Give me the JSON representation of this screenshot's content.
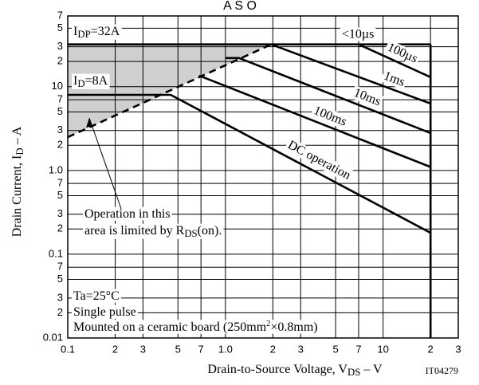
{
  "chart_data": {
    "type": "line",
    "title": "A S O",
    "xlabel": {
      "text": "Drain-to-Source Voltage, V",
      "sub": "DS",
      "after": " – V"
    },
    "ylabel": {
      "text": "Drain Current, I",
      "sub": "D",
      "after": " – A"
    },
    "code": "IT04279",
    "xscale": "log",
    "yscale": "log",
    "xlim": [
      0.1,
      30
    ],
    "ylim": [
      0.01,
      70
    ],
    "xticks": [
      0.1,
      {
        "value": 0.2,
        "label": "2"
      },
      {
        "value": 0.3,
        "label": "3"
      },
      {
        "value": 0.5,
        "label": "5"
      },
      {
        "value": 0.7,
        "label": "7"
      },
      {
        "value": 1,
        "label": "1.0"
      },
      2,
      3,
      5,
      7,
      10,
      {
        "value": 20,
        "label": "2"
      },
      {
        "value": 30,
        "label": "3"
      }
    ],
    "yticks": [
      {
        "value": 70,
        "label": "7"
      },
      {
        "value": 50,
        "label": "5"
      },
      {
        "value": 30,
        "label": "3"
      },
      {
        "value": 20,
        "label": "2"
      },
      10,
      7,
      5,
      3,
      2,
      {
        "value": 1,
        "label": "1.0"
      },
      {
        "value": 0.7,
        "label": "7"
      },
      {
        "value": 0.5,
        "label": "5"
      },
      {
        "value": 0.3,
        "label": "3"
      },
      {
        "value": 0.2,
        "label": "2"
      },
      0.1,
      {
        "value": 0.07,
        "label": "7"
      },
      {
        "value": 0.05,
        "label": "5"
      },
      {
        "value": 0.03,
        "label": "3"
      },
      {
        "value": 0.02,
        "label": "2"
      },
      0.01
    ],
    "grid": true,
    "series": [
      {
        "name": "<10µs",
        "color": "#000000",
        "x": [
          0.1,
          20
        ],
        "values": [
          32,
          32
        ]
      },
      {
        "color": "#000000",
        "dashed": true,
        "x": [
          0.1,
          1.95
        ],
        "values": [
          2.5,
          32
        ]
      },
      {
        "name": "100µs",
        "color": "#000000",
        "x": [
          7,
          20
        ],
        "values": [
          32,
          13
        ]
      },
      {
        "name": "1ms",
        "color": "#000000",
        "x": [
          1.95,
          20
        ],
        "values": [
          32,
          6.3
        ]
      },
      {
        "name": "10ms",
        "color": "#000000",
        "x": [
          1.0,
          1.22,
          20
        ],
        "values": [
          22,
          22,
          2.8
        ]
      },
      {
        "name": "100ms",
        "color": "#000000",
        "x": [
          0.68,
          20
        ],
        "values": [
          13.6,
          1.1
        ]
      },
      {
        "name": "DC operation",
        "color": "#000000",
        "x": [
          0.1,
          0.45,
          20
        ],
        "values": [
          8,
          8,
          0.18
        ]
      },
      {
        "color": "#000000",
        "x": [
          20,
          20
        ],
        "values": [
          32,
          0.01
        ]
      }
    ],
    "annotations": [
      {
        "text": "I",
        "sub": "DP",
        "after": "=32A"
      },
      {
        "text": "I",
        "sub": "D",
        "after": "=8A"
      },
      {
        "text": "Operation in this"
      },
      {
        "text": "area is limited by R",
        "sub": "DS",
        "after": "(on)."
      },
      {
        "text": "Ta=25°C"
      },
      {
        "text": "Single pulse"
      },
      {
        "text": "Mounted on a ceramic board (250mm",
        "sup": "2",
        "after": "×0.8mm)"
      }
    ]
  }
}
